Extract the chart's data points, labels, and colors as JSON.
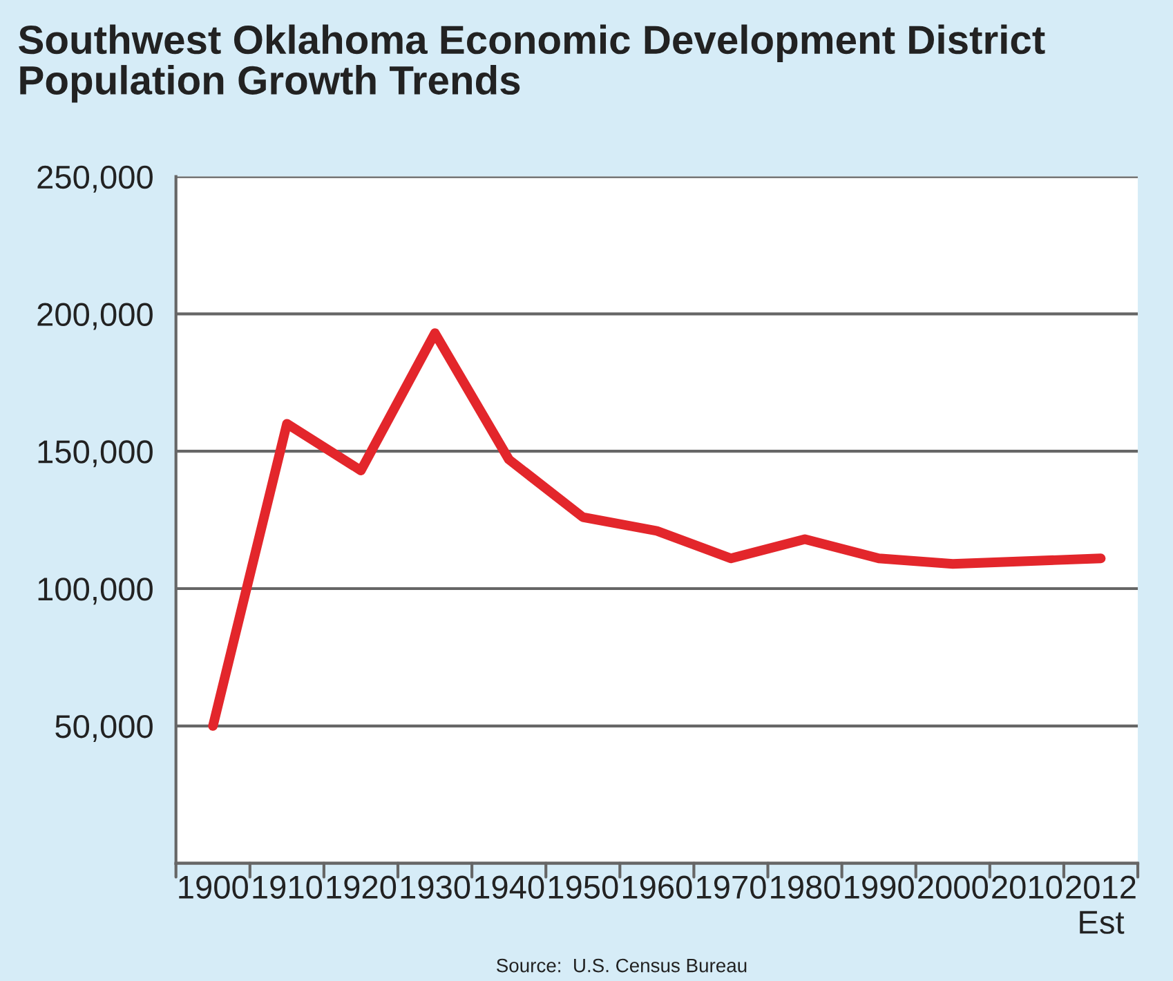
{
  "chart_data": {
    "type": "line",
    "title": "Southwest Oklahoma Economic Development District\nPopulation Growth Trends",
    "categories": [
      "1900",
      "1910",
      "1920",
      "1930",
      "1940",
      "1950",
      "1960",
      "1970",
      "1980",
      "1990",
      "2000",
      "2010",
      "2012\nEst"
    ],
    "series": [
      {
        "color": "#e3262b",
        "values": [
          50000,
          160000,
          143000,
          193000,
          147000,
          126000,
          121000,
          111000,
          118000,
          111000,
          109000,
          110000,
          111000
        ]
      }
    ],
    "ylim": [
      0,
      250000
    ],
    "yticks": [
      {
        "value": 0,
        "label": null
      },
      {
        "value": 50000,
        "label": "50,000"
      },
      {
        "value": 100000,
        "label": "100,000"
      },
      {
        "value": 150000,
        "label": "150,000"
      },
      {
        "value": 200000,
        "label": "200,000"
      },
      {
        "value": 250000,
        "label": "250,000"
      }
    ],
    "grid": "y",
    "legend": false,
    "marker": "none",
    "line_style": "solid",
    "annotations": [
      "Source:  U.S. Census Bureau"
    ]
  }
}
